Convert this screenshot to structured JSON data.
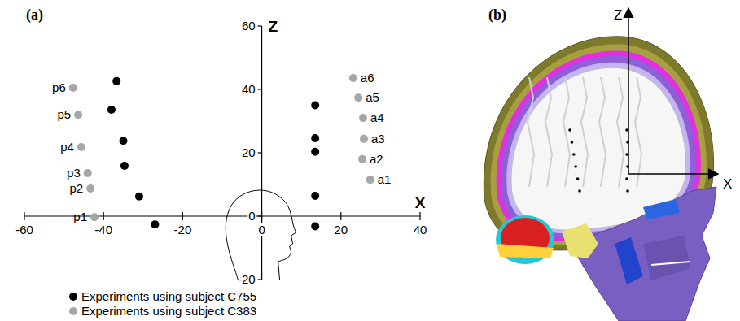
{
  "chart_data": {
    "type": "scatter",
    "panel_label": "(a)",
    "x_label": "X",
    "y_label": "Z",
    "xlim": [
      -60,
      40
    ],
    "ylim": [
      -20,
      60
    ],
    "xticks": [
      -60,
      -40,
      -20,
      0,
      20,
      40
    ],
    "yticks": [
      -20,
      0,
      20,
      40,
      60
    ],
    "legend": "bottom",
    "series": [
      {
        "name": "Experiments using subject C755",
        "color": "#000000",
        "marker": "circle",
        "x": [
          -36.7,
          -38,
          -35,
          -34.7,
          -31,
          -27,
          13.5,
          13.5,
          13.5,
          13.5,
          13.5
        ],
        "values": [
          42.6,
          33.6,
          23.8,
          15.9,
          6.2,
          -2.6,
          35,
          24.6,
          20.3,
          6.4,
          -3.2
        ]
      },
      {
        "name": "Experiments using subject C383",
        "color": "#a6a6a6",
        "marker": "circle",
        "x": [
          -42.3,
          -43.3,
          -44,
          -45.6,
          -46.4,
          -47.7,
          27.4,
          25.4,
          25.8,
          25.6,
          24.4,
          23.1
        ],
        "values": [
          -0.3,
          8.7,
          13.6,
          21.8,
          32,
          40.5,
          11.5,
          18,
          24.4,
          31,
          37.4,
          43.6
        ],
        "labels": [
          "p1",
          "p2",
          "p3",
          "p4",
          "p5",
          "p6",
          "a1",
          "a2",
          "a3",
          "a4",
          "a5",
          "a6"
        ]
      }
    ]
  },
  "panel_b": {
    "panel_label": "(b)",
    "z_label": "Z",
    "x_label": "X"
  }
}
